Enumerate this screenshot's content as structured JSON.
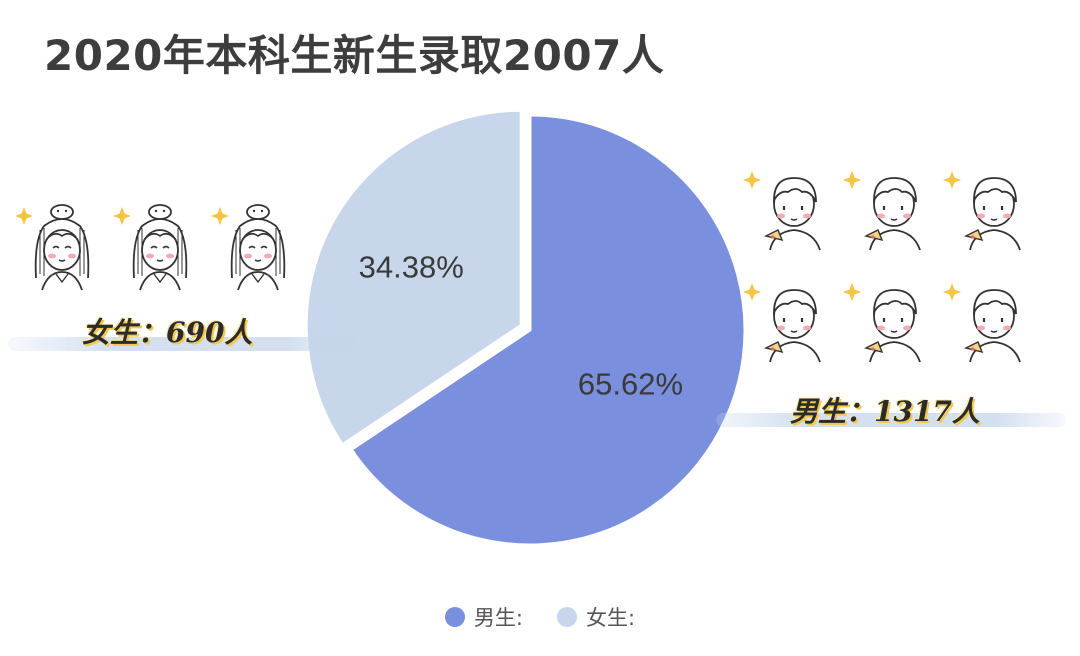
{
  "title": "2020年本科生新生录取2007人",
  "callouts": {
    "female": "女生：690人",
    "male": "男生：1317人"
  },
  "legend": [
    {
      "label": "男生:",
      "color": "#7b8fdf"
    },
    {
      "label": "女生:",
      "color": "#c7d6ea"
    }
  ],
  "colors": {
    "male": "#7b8fdf",
    "female": "#c7d6ea",
    "title": "#3d3d3d"
  },
  "icons": {
    "female_icon": "girl-avatar-icon",
    "male_icon": "boy-avatar-icon",
    "sparkle_icon": "sparkle-icon"
  },
  "chart_data": {
    "type": "pie",
    "title": "2020年本科生新生录取2007人",
    "slices": [
      {
        "label": "男生",
        "value": 1317,
        "percent": 65.62,
        "percent_label": "65.62%",
        "color": "#7b8fdf"
      },
      {
        "label": "女生",
        "value": 690,
        "percent": 34.38,
        "percent_label": "34.38%",
        "color": "#c7d6ea"
      }
    ],
    "legend_position": "bottom"
  }
}
